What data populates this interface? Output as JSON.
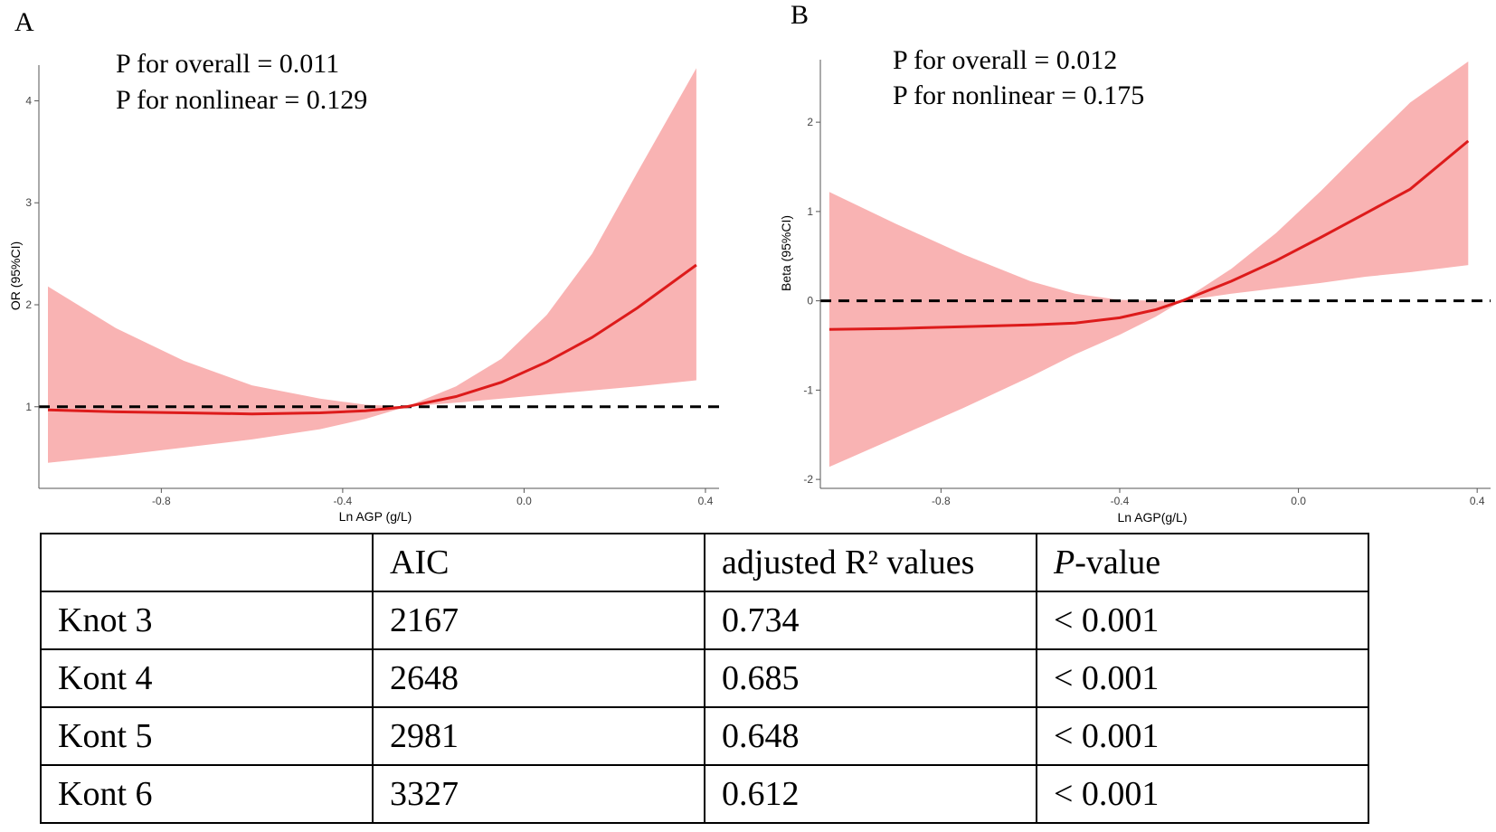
{
  "chart_data": [
    {
      "type": "line",
      "panel": "A",
      "title": "",
      "xlabel": "Ln AGP (g/L)",
      "ylabel": "OR (95%CI)",
      "xlim": [
        -1.07,
        0.43
      ],
      "ylim": [
        0.2,
        4.35
      ],
      "xticks": [
        -0.8,
        -0.4,
        0.0,
        0.4
      ],
      "xtick_labels": [
        "-0.8",
        "-0.4",
        "0.0",
        "0.4"
      ],
      "yticks": [
        1,
        2,
        3,
        4
      ],
      "ytick_labels": [
        "1",
        "2",
        "3",
        "4"
      ],
      "reference_line": 1,
      "annotation_lines": [
        "P for overall = 0.011",
        "P for nonlinear = 0.129"
      ],
      "x": [
        -1.05,
        -0.9,
        -0.75,
        -0.6,
        -0.45,
        -0.35,
        -0.26,
        -0.15,
        -0.05,
        0.05,
        0.15,
        0.25,
        0.38
      ],
      "y": [
        0.97,
        0.95,
        0.94,
        0.93,
        0.94,
        0.96,
        1.0,
        1.1,
        1.24,
        1.44,
        1.68,
        1.97,
        2.39
      ],
      "lower": [
        0.45,
        0.52,
        0.6,
        0.68,
        0.78,
        0.88,
        1.0,
        1.04,
        1.08,
        1.12,
        1.16,
        1.2,
        1.26
      ],
      "upper": [
        2.18,
        1.77,
        1.45,
        1.21,
        1.08,
        1.02,
        1.0,
        1.2,
        1.47,
        1.9,
        2.5,
        3.3,
        4.32
      ]
    },
    {
      "type": "line",
      "panel": "B",
      "title": "",
      "xlabel": "Ln AGP(g/L)",
      "ylabel": "Beta (95%CI)",
      "xlim": [
        -1.07,
        0.43
      ],
      "ylim": [
        -2.1,
        2.7
      ],
      "xticks": [
        -0.8,
        -0.4,
        0.0,
        0.4
      ],
      "xtick_labels": [
        "-0.8",
        "-0.4",
        "0.0",
        "0.4"
      ],
      "yticks": [
        -2,
        -1,
        0,
        1,
        2
      ],
      "ytick_labels": [
        "-2",
        "-1",
        "0",
        "1",
        "2"
      ],
      "reference_line": 0,
      "annotation_lines": [
        "P for overall = 0.012",
        "P for nonlinear = 0.175"
      ],
      "x": [
        -1.05,
        -0.9,
        -0.75,
        -0.6,
        -0.5,
        -0.4,
        -0.32,
        -0.26,
        -0.15,
        -0.05,
        0.05,
        0.15,
        0.25,
        0.38
      ],
      "y": [
        -0.32,
        -0.31,
        -0.29,
        -0.27,
        -0.25,
        -0.19,
        -0.1,
        0.0,
        0.22,
        0.45,
        0.71,
        0.98,
        1.25,
        1.79
      ],
      "lower": [
        -1.86,
        -1.53,
        -1.2,
        -0.85,
        -0.6,
        -0.38,
        -0.18,
        0.0,
        0.08,
        0.14,
        0.2,
        0.27,
        0.32,
        0.4
      ],
      "upper": [
        1.22,
        0.86,
        0.52,
        0.22,
        0.08,
        0.01,
        0.0,
        0.0,
        0.36,
        0.76,
        1.23,
        1.73,
        2.22,
        2.68
      ]
    }
  ],
  "panels": {
    "a": {
      "label": "A"
    },
    "b": {
      "label": "B"
    }
  },
  "table": {
    "header": {
      "blank": "",
      "aic": "AIC",
      "r2": "adjusted R² values",
      "p_italic": "P",
      "p_rest": "-value"
    },
    "rows": [
      {
        "name": "Knot 3",
        "aic": "2167",
        "r2": "0.734",
        "p": "< 0.001"
      },
      {
        "name": "Kont 4",
        "aic": "2648",
        "r2": "0.685",
        "p": "< 0.001"
      },
      {
        "name": "Kont 5",
        "aic": "2981",
        "r2": "0.648",
        "p": "< 0.001"
      },
      {
        "name": "Kont 6",
        "aic": "3327",
        "r2": "0.612",
        "p": "< 0.001"
      }
    ]
  },
  "colors": {
    "line": "#dd1b1b",
    "band": "#f9b3b3",
    "reference": "#000000",
    "axis": "#555555"
  }
}
